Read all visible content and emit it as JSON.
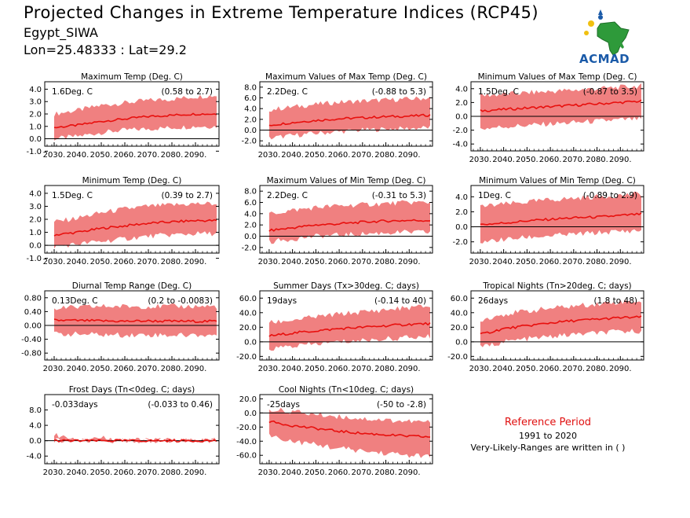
{
  "header": {
    "title": "Projected Changes in Extreme Temperature Indices (RCP45)",
    "station": "Egypt_SIWA",
    "coords": "Lon=25.48333 : Lat=29.2"
  },
  "logo": {
    "text": "ACMAD",
    "icon": "africa-map-logo"
  },
  "legend": {
    "reference_title": "Reference Period",
    "reference_years": "1991 to 2020",
    "note": "Very-Likely-Ranges are written in ( )"
  },
  "colors": {
    "line": "#e8100e",
    "band": "#f08080",
    "zero": "#000000"
  },
  "x_ticks": [
    "2030.",
    "2040.",
    "2050.",
    "2060.",
    "2070.",
    "2080.",
    "2090."
  ],
  "chart_data": [
    {
      "type": "area",
      "title": "Maximum Temp (Deg. C)",
      "annotation": "1.6Deg. C",
      "range": "(0.58 to 2.7)",
      "xlim": [
        2026,
        2100
      ],
      "ylim": [
        -0.6,
        4.6
      ],
      "yticks": [
        4.0,
        3.0,
        2.0,
        1.0,
        0.0,
        -1.0
      ],
      "x": [
        2030,
        2040,
        2050,
        2060,
        2070,
        2080,
        2090,
        2099
      ],
      "mean": [
        0.9,
        1.1,
        1.4,
        1.6,
        1.8,
        1.9,
        2.0,
        2.0
      ],
      "lower": [
        0.0,
        0.2,
        0.5,
        0.7,
        0.8,
        0.9,
        1.0,
        1.0
      ],
      "upper": [
        2.0,
        2.3,
        2.7,
        2.9,
        3.1,
        3.2,
        3.4,
        3.5
      ]
    },
    {
      "type": "area",
      "title": "Maximum Values of Max Temp (Deg. C)",
      "annotation": "2.2Deg. C",
      "range": "(-0.88 to 5.3)",
      "xlim": [
        2026,
        2100
      ],
      "ylim": [
        -3.0,
        9.0
      ],
      "yticks": [
        8.0,
        6.0,
        4.0,
        2.0,
        0.0,
        -2.0
      ],
      "x": [
        2030,
        2040,
        2050,
        2060,
        2070,
        2080,
        2090,
        2099
      ],
      "mean": [
        0.9,
        1.4,
        1.8,
        2.1,
        2.3,
        2.5,
        2.6,
        2.8
      ],
      "lower": [
        -1.5,
        -1.0,
        -0.6,
        -0.3,
        0.0,
        0.2,
        0.3,
        0.5
      ],
      "upper": [
        3.8,
        4.3,
        4.8,
        5.2,
        5.4,
        5.6,
        5.8,
        6.0
      ]
    },
    {
      "type": "area",
      "title": "Minimum Values of Max Temp (Deg. C)",
      "annotation": "1.5Deg. C",
      "range": "(-0.87 to 3.5)",
      "xlim": [
        2026,
        2100
      ],
      "ylim": [
        -5.0,
        5.0
      ],
      "yticks": [
        4.0,
        2.0,
        0.0,
        -2.0,
        -4.0
      ],
      "x": [
        2030,
        2040,
        2050,
        2060,
        2070,
        2080,
        2090,
        2099
      ],
      "mean": [
        0.8,
        1.0,
        1.2,
        1.4,
        1.6,
        1.8,
        2.0,
        2.2
      ],
      "lower": [
        -1.8,
        -1.5,
        -1.3,
        -1.1,
        -0.9,
        -0.7,
        -0.5,
        -0.4
      ],
      "upper": [
        3.0,
        3.2,
        3.4,
        3.6,
        3.8,
        4.0,
        4.2,
        4.4
      ]
    },
    {
      "type": "area",
      "title": "Minimum Temp (Deg. C)",
      "annotation": "1.5Deg. C",
      "range": "(0.39 to 2.7)",
      "xlim": [
        2026,
        2100
      ],
      "ylim": [
        -0.6,
        4.6
      ],
      "yticks": [
        4.0,
        3.0,
        2.0,
        1.0,
        0.0,
        -1.0
      ],
      "x": [
        2030,
        2040,
        2050,
        2060,
        2070,
        2080,
        2090,
        2099
      ],
      "mean": [
        0.8,
        1.0,
        1.3,
        1.5,
        1.7,
        1.8,
        1.9,
        1.9
      ],
      "lower": [
        -0.1,
        0.1,
        0.3,
        0.5,
        0.7,
        0.8,
        0.9,
        0.9
      ],
      "upper": [
        1.8,
        2.1,
        2.5,
        2.8,
        3.0,
        3.1,
        3.2,
        3.2
      ]
    },
    {
      "type": "area",
      "title": "Maximum Values of Min Temp (Deg. C)",
      "annotation": "2.2Deg. C",
      "range": "(-0.31 to 5.3)",
      "xlim": [
        2026,
        2100
      ],
      "ylim": [
        -3.0,
        9.0
      ],
      "yticks": [
        8.0,
        6.0,
        4.0,
        2.0,
        0.0,
        -2.0
      ],
      "x": [
        2030,
        2040,
        2050,
        2060,
        2070,
        2080,
        2090,
        2099
      ],
      "mean": [
        1.0,
        1.5,
        2.0,
        2.2,
        2.5,
        2.7,
        2.8,
        2.8
      ],
      "lower": [
        -1.0,
        -0.5,
        0.0,
        0.2,
        0.4,
        0.6,
        0.7,
        0.7
      ],
      "upper": [
        4.0,
        4.6,
        5.1,
        5.4,
        5.6,
        5.8,
        6.0,
        6.0
      ]
    },
    {
      "type": "area",
      "title": "Minimum Values of Min Temp (Deg. C)",
      "annotation": "1Deg. C",
      "range": "(-0.89 to 2.9)",
      "xlim": [
        2026,
        2100
      ],
      "ylim": [
        -3.5,
        5.5
      ],
      "yticks": [
        4.0,
        2.0,
        0.0,
        -2.0
      ],
      "x": [
        2030,
        2040,
        2050,
        2060,
        2070,
        2080,
        2090,
        2099
      ],
      "mean": [
        0.3,
        0.5,
        0.8,
        1.0,
        1.2,
        1.3,
        1.5,
        1.7
      ],
      "lower": [
        -2.0,
        -1.7,
        -1.4,
        -1.2,
        -1.0,
        -0.8,
        -0.6,
        -0.5
      ],
      "upper": [
        2.7,
        3.0,
        3.3,
        3.6,
        3.8,
        4.0,
        4.2,
        4.4
      ]
    },
    {
      "type": "area",
      "title": "Diurnal Temp Range (Deg. C)",
      "annotation": "0.13Deg. C",
      "range": "(0.2 to -0.0083)",
      "xlim": [
        2026,
        2100
      ],
      "ylim": [
        -1.0,
        1.0
      ],
      "yticks": [
        0.8,
        0.4,
        0.0,
        -0.4,
        -0.8
      ],
      "x": [
        2030,
        2040,
        2050,
        2060,
        2070,
        2080,
        2090,
        2099
      ],
      "mean": [
        0.15,
        0.14,
        0.13,
        0.12,
        0.13,
        0.12,
        0.12,
        0.12
      ],
      "lower": [
        -0.25,
        -0.25,
        -0.27,
        -0.28,
        -0.27,
        -0.28,
        -0.28,
        -0.28
      ],
      "upper": [
        0.5,
        0.52,
        0.55,
        0.55,
        0.55,
        0.55,
        0.55,
        0.55
      ]
    },
    {
      "type": "area",
      "title": "Summer Days (Tx>30deg. C; days)",
      "annotation": "19days",
      "range": "(-0.14 to 40)",
      "xlim": [
        2026,
        2100
      ],
      "ylim": [
        -25,
        70
      ],
      "yticks": [
        60.0,
        40.0,
        20.0,
        0.0,
        -20.0
      ],
      "x": [
        2030,
        2040,
        2050,
        2060,
        2070,
        2080,
        2090,
        2099
      ],
      "mean": [
        8,
        12,
        15,
        18,
        20,
        22,
        24,
        25
      ],
      "lower": [
        -10,
        -6,
        -3,
        0,
        2,
        4,
        6,
        7
      ],
      "upper": [
        26,
        30,
        34,
        38,
        41,
        44,
        47,
        49
      ]
    },
    {
      "type": "area",
      "title": "Tropical Nights (Tn>20deg. C; days)",
      "annotation": "26days",
      "range": "(1.8 to 48)",
      "xlim": [
        2026,
        2100
      ],
      "ylim": [
        -25,
        70
      ],
      "yticks": [
        60.0,
        40.0,
        20.0,
        0.0,
        -20.0
      ],
      "x": [
        2030,
        2040,
        2050,
        2060,
        2070,
        2080,
        2090,
        2099
      ],
      "mean": [
        10,
        18,
        22,
        26,
        29,
        31,
        33,
        34
      ],
      "lower": [
        -8,
        0,
        4,
        7,
        10,
        12,
        14,
        15
      ],
      "upper": [
        30,
        38,
        42,
        46,
        49,
        52,
        55,
        56
      ]
    },
    {
      "type": "area",
      "title": "Frost Days (Tn<0deg. C; days)",
      "annotation": "-0.033days",
      "range": "(-0.033 to 0.46)",
      "xlim": [
        2026,
        2100
      ],
      "ylim": [
        -6,
        12
      ],
      "yticks": [
        8.0,
        4.0,
        0.0,
        -4.0
      ],
      "x": [
        2030,
        2040,
        2050,
        2060,
        2070,
        2080,
        2090,
        2099
      ],
      "mean": [
        0.0,
        0.0,
        0.0,
        0.0,
        0.0,
        0.0,
        0.0,
        0.0
      ],
      "lower": [
        0.0,
        0.0,
        0.0,
        0.0,
        0.0,
        0.0,
        0.0,
        0.0
      ],
      "upper": [
        1.5,
        0.6,
        0.8,
        0.1,
        0.1,
        0.1,
        0.1,
        0.1
      ]
    },
    {
      "type": "area",
      "title": "Cool Nights (Tn<10deg. C; days)",
      "annotation": "-25days",
      "range": "(-50 to -2.8)",
      "xlim": [
        2026,
        2100
      ],
      "ylim": [
        -72,
        26
      ],
      "yticks": [
        20.0,
        0.0,
        -20.0,
        -40.0,
        -60.0
      ],
      "x": [
        2030,
        2040,
        2050,
        2060,
        2070,
        2080,
        2090,
        2099
      ],
      "mean": [
        -12,
        -18,
        -22,
        -26,
        -29,
        -31,
        -33,
        -34
      ],
      "lower": [
        -32,
        -40,
        -45,
        -50,
        -54,
        -57,
        -60,
        -62
      ],
      "upper": [
        5,
        2,
        -2,
        -5,
        -8,
        -10,
        -12,
        -13
      ]
    }
  ]
}
